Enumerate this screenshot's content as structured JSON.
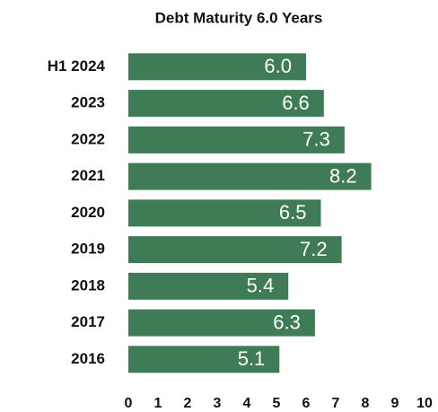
{
  "chart_data": {
    "type": "bar",
    "orientation": "horizontal",
    "title": "Debt Maturity 6.0 Years",
    "categories": [
      "H1 2024",
      "2023",
      "2022",
      "2021",
      "2020",
      "2019",
      "2018",
      "2017",
      "2016"
    ],
    "values": [
      6.0,
      6.6,
      7.3,
      8.2,
      6.5,
      7.2,
      5.4,
      6.3,
      5.1
    ],
    "value_labels": [
      "6.0",
      "6.6",
      "7.3",
      "8.2",
      "6.5",
      "7.2",
      "5.4",
      "6.3",
      "5.1"
    ],
    "color": "#3f7b56",
    "xlim": [
      0,
      10
    ],
    "xticks": [
      0,
      1,
      2,
      3,
      4,
      5,
      6,
      7,
      8,
      9,
      10
    ],
    "grid": false
  }
}
